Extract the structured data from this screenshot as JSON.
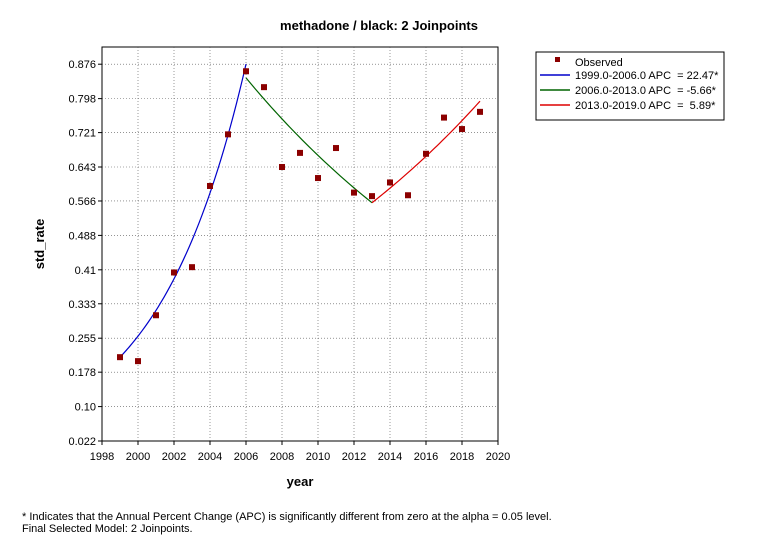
{
  "chart_data": {
    "type": "scatter",
    "title": "methadone / black: 2 Joinpoints",
    "xlabel": "year",
    "ylabel": "std_rate",
    "xlim": [
      1998,
      2020
    ],
    "ylim": [
      0.022,
      0.915
    ],
    "x_ticks": [
      "1998",
      "2000",
      "2002",
      "2004",
      "2006",
      "2008",
      "2010",
      "2012",
      "2014",
      "2016",
      "2018",
      "2020"
    ],
    "y_ticks": [
      "0.022",
      "0.10",
      "0.178",
      "0.255",
      "0.333",
      "0.41",
      "0.488",
      "0.566",
      "0.643",
      "0.721",
      "0.798",
      "0.876"
    ],
    "grid": true,
    "legend_position": "top-right, outside plot",
    "observed": {
      "name": "Observed",
      "color": "#8b0000",
      "x": [
        1999,
        2000,
        2001,
        2002,
        2003,
        2004,
        2005,
        2006,
        2007,
        2008,
        2009,
        2010,
        2011,
        2012,
        2013,
        2014,
        2015,
        2016,
        2017,
        2018,
        2019
      ],
      "y": [
        0.212,
        0.203,
        0.307,
        0.404,
        0.416,
        0.6,
        0.717,
        0.86,
        0.824,
        0.643,
        0.675,
        0.618,
        0.686,
        0.585,
        0.577,
        0.608,
        0.579,
        0.673,
        0.755,
        0.729,
        0.768
      ]
    },
    "series": [
      {
        "name": "1999.0-2006.0 APC  = 22.47*",
        "color": "#0000cc",
        "x_start": 1999,
        "x_end": 2006,
        "y_start": 0.212,
        "apc": 22.47
      },
      {
        "name": "2006.0-2013.0 APC  = -5.66*",
        "color": "#006400",
        "x_start": 2006,
        "x_end": 2013,
        "y_start": 0.845,
        "apc": -5.66
      },
      {
        "name": "2013.0-2019.0 APC  =  5.89*",
        "color": "#dd0000",
        "x_start": 2013,
        "x_end": 2019,
        "y_start": 0.562,
        "apc": 5.89
      }
    ]
  },
  "footnotes": {
    "line1": "* Indicates that the Annual Percent Change (APC) is significantly different from zero at the alpha = 0.05 level.",
    "line2": "Final Selected Model: 2 Joinpoints."
  }
}
